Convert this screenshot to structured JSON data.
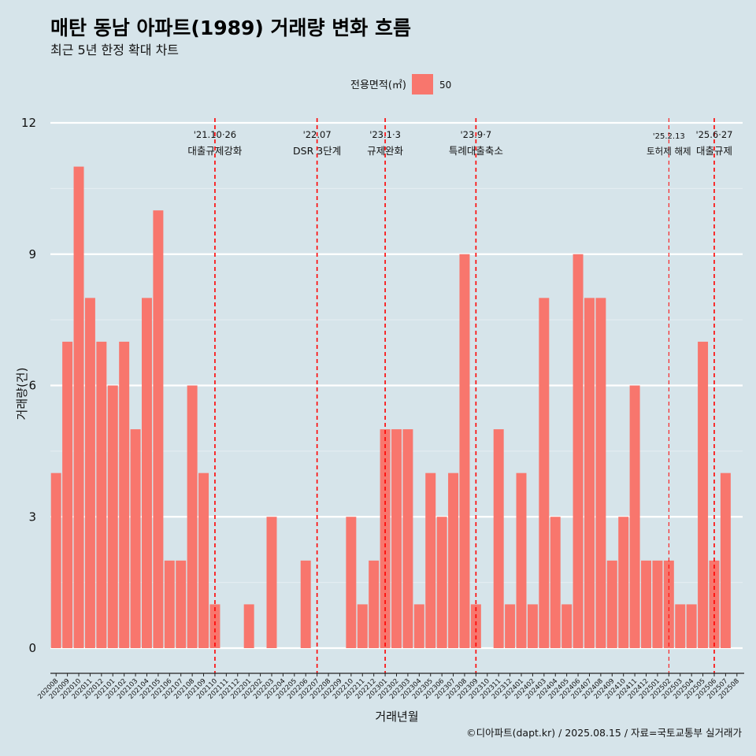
{
  "title": "매탄 동남 아파트(1989) 거래량 변화 흐름",
  "subtitle": "최근 5년 한정 확대 차트",
  "legend": {
    "title": "전용면적(㎡)",
    "items": [
      {
        "label": "50",
        "color": "#f8766d"
      }
    ]
  },
  "caption": "©디아파트(dapt.kr) / 2025.08.15 / 자료=국토교통부 실거래가",
  "chart_data": {
    "type": "bar",
    "xlabel": "거래년월",
    "ylabel": "거래량(건)",
    "ylim": [
      0,
      12
    ],
    "yticks": [
      0,
      3,
      6,
      9,
      12
    ],
    "bar_color": "#f8766d",
    "categories": [
      "202008",
      "202009",
      "202010",
      "202011",
      "202012",
      "202101",
      "202102",
      "202103",
      "202104",
      "202105",
      "202106",
      "202107",
      "202108",
      "202109",
      "202110",
      "202111",
      "202112",
      "202201",
      "202202",
      "202203",
      "202204",
      "202205",
      "202206",
      "202207",
      "202208",
      "202209",
      "202210",
      "202211",
      "202212",
      "202301",
      "202302",
      "202303",
      "202304",
      "202305",
      "202306",
      "202307",
      "202308",
      "202309",
      "202310",
      "202311",
      "202312",
      "202401",
      "202402",
      "202403",
      "202404",
      "202405",
      "202406",
      "202407",
      "202408",
      "202409",
      "202410",
      "202411",
      "202412",
      "202501",
      "202502",
      "202503",
      "202504",
      "202505",
      "202506",
      "202507",
      "202508"
    ],
    "series": [
      {
        "name": "50",
        "values": [
          4,
          7,
          11,
          8,
          7,
          6,
          7,
          5,
          8,
          10,
          2,
          2,
          6,
          4,
          1,
          0,
          0,
          1,
          0,
          3,
          0,
          0,
          2,
          0,
          0,
          0,
          3,
          1,
          2,
          5,
          5,
          5,
          1,
          4,
          3,
          4,
          9,
          1,
          0,
          5,
          1,
          4,
          1,
          8,
          3,
          1,
          9,
          8,
          8,
          2,
          3,
          6,
          2,
          2,
          2,
          1,
          1,
          7,
          2,
          4,
          0
        ]
      }
    ],
    "events": [
      {
        "month": "202110",
        "date": "'21.10·26",
        "label": "대출규제강화"
      },
      {
        "month": "202207",
        "date": "'22.07",
        "label": "DSR 3단계"
      },
      {
        "month": "202301",
        "date": "'23.1·3",
        "label": "규제완화"
      },
      {
        "month": "202309",
        "date": "'23.9·7",
        "label": "특례대출축소"
      },
      {
        "month": "202502",
        "date": "'25.2.13",
        "label": "토허제 해제"
      },
      {
        "month": "202506",
        "date": "'25.6·27",
        "label": "대출규제"
      }
    ]
  }
}
